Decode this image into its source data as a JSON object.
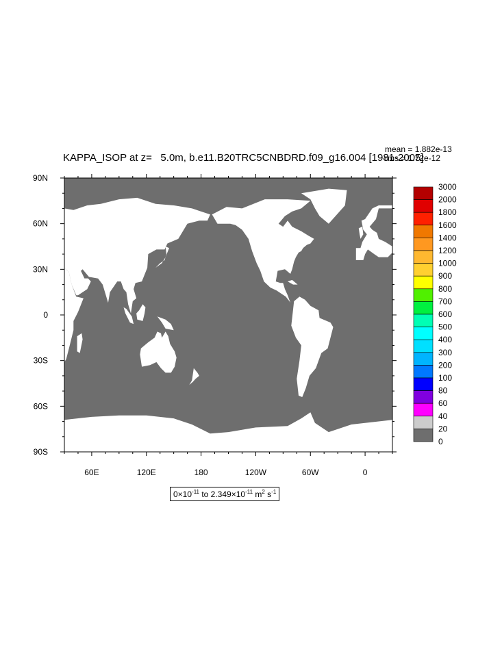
{
  "plot": {
    "title": "KAPPA_ISOP at z=   5.0m, b.e11.B20TRC5CNBDRD.f09_g16.004 [1981-2005]",
    "stats": [
      "mean = 1.882e-13",
      "rms = 1.72e-12"
    ],
    "range_label": {
      "prefix": "0×10",
      "prefix_exp": "-11",
      "middle": " to 2.349×10",
      "middle_exp": "-11",
      "units": " m",
      "units_exp1": "2",
      "units_mid": " s",
      "units_exp2": "-1"
    }
  },
  "map": {
    "projection": "cylindrical-equidistant",
    "lon_range": [
      30,
      390
    ],
    "lat_range": [
      -90,
      90
    ],
    "land_color": "#ffffff",
    "ocean_fill_color": "#6e6e6e",
    "lat_tick_labels": [
      "90N",
      "60N",
      "30N",
      "0",
      "30S",
      "60S",
      "90S"
    ],
    "lon_tick_labels": [
      "60E",
      "120E",
      "180",
      "120W",
      "60W",
      "0"
    ]
  },
  "colorbar": {
    "labels": [
      "3000",
      "2000",
      "1800",
      "1600",
      "1400",
      "1200",
      "1000",
      "900",
      "800",
      "700",
      "600",
      "500",
      "400",
      "300",
      "200",
      "100",
      "80",
      "60",
      "40",
      "20",
      "0"
    ],
    "colors": [
      "#b40000",
      "#e00000",
      "#ff2000",
      "#f07800",
      "#ff9820",
      "#ffb830",
      "#ffd030",
      "#ffff00",
      "#50f000",
      "#00f040",
      "#00ffb4",
      "#00ffff",
      "#00e0ff",
      "#00b4ff",
      "#0078ff",
      "#0000ff",
      "#8000e0",
      "#ff00ff",
      "#cccccc",
      "#6e6e6e"
    ]
  }
}
